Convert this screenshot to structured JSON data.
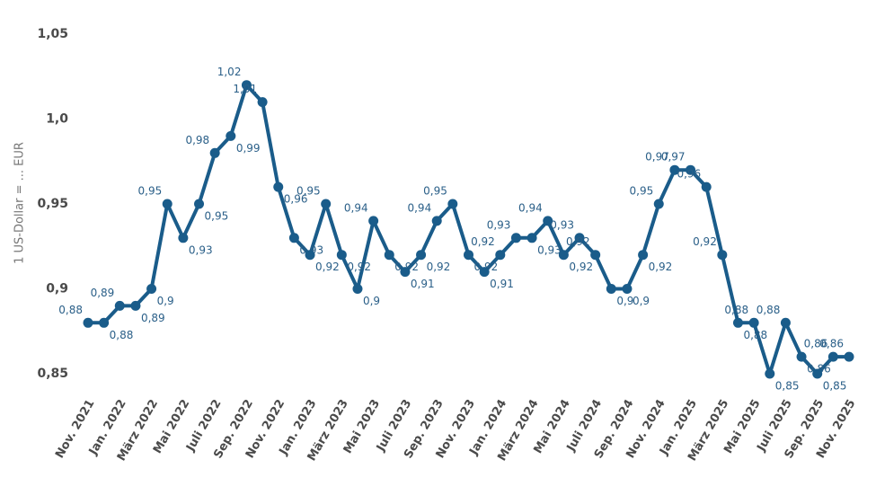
{
  "chart_data": {
    "type": "line",
    "y_label": "1 US-Dollar = ... EUR",
    "categories": [
      "Nov. 2021",
      null,
      "Jan. 2022",
      null,
      "März 2022",
      null,
      "Mai 2022",
      null,
      "Juli 2022",
      null,
      "Sep. 2022",
      null,
      "Nov. 2022",
      null,
      "Jan. 2023",
      null,
      "März 2023",
      null,
      "Mai 2023",
      null,
      "Juli 2023",
      null,
      "Sep. 2023",
      null,
      "Nov. 2023",
      null,
      "Jan. 2024",
      null,
      "März 2024",
      null,
      "Mai 2024",
      null,
      "Juli 2024",
      null,
      "Sep. 2024",
      null,
      "Nov. 2024",
      null,
      "Jan. 2025",
      null,
      "März 2025",
      null,
      "Mai 2025",
      null,
      "Juli 2025",
      null,
      "Sep. 2025",
      null,
      "Nov. 2025"
    ],
    "values": [
      0.88,
      0.88,
      0.89,
      0.89,
      0.9,
      0.95,
      0.93,
      0.95,
      0.98,
      0.99,
      1.02,
      1.01,
      0.96,
      0.93,
      0.92,
      0.95,
      0.92,
      0.9,
      0.94,
      0.92,
      0.91,
      0.92,
      0.94,
      0.95,
      0.92,
      0.91,
      0.92,
      0.93,
      0.93,
      0.94,
      0.92,
      0.93,
      0.92,
      0.9,
      0.9,
      0.92,
      0.95,
      0.97,
      0.97,
      0.96,
      0.92,
      0.88,
      0.88,
      0.85,
      0.88,
      0.86,
      0.85,
      0.86,
      0.86
    ],
    "value_labels": [
      "0,88",
      "0,88",
      "0,89",
      "0,89",
      "0,9",
      "0,95",
      "0,93",
      "0,95",
      "0,98",
      "0,99",
      "1,02",
      "1,01",
      "0,96",
      "0,93",
      "0,92",
      "0,95",
      "0,92",
      "0,9",
      "0,94",
      "0,92",
      "0,91",
      "0,92",
      "0,94",
      "0,95",
      "0,92",
      "0,91",
      "0,92",
      "0,93",
      "0,93",
      "0,94",
      "0,92",
      "0,93",
      "0,92",
      "0,9",
      "0,9",
      "0,92",
      "0,95",
      "0,97",
      "0,97",
      "0,96",
      "0,92",
      "0,88",
      "0,88",
      "0,85",
      "0,88",
      "0,86",
      "0,85",
      "0,86",
      "0,86"
    ],
    "color": "#1a5c8a",
    "ylim": [
      0.85,
      1.05
    ],
    "yticks": [
      {
        "value": 0.85,
        "label": "0,85"
      },
      {
        "value": 0.9,
        "label": "0,9"
      },
      {
        "value": 0.95,
        "label": "0,95"
      },
      {
        "value": 1.0,
        "label": "1,0"
      },
      {
        "value": 1.05,
        "label": "1,05"
      }
    ],
    "grid": false
  }
}
